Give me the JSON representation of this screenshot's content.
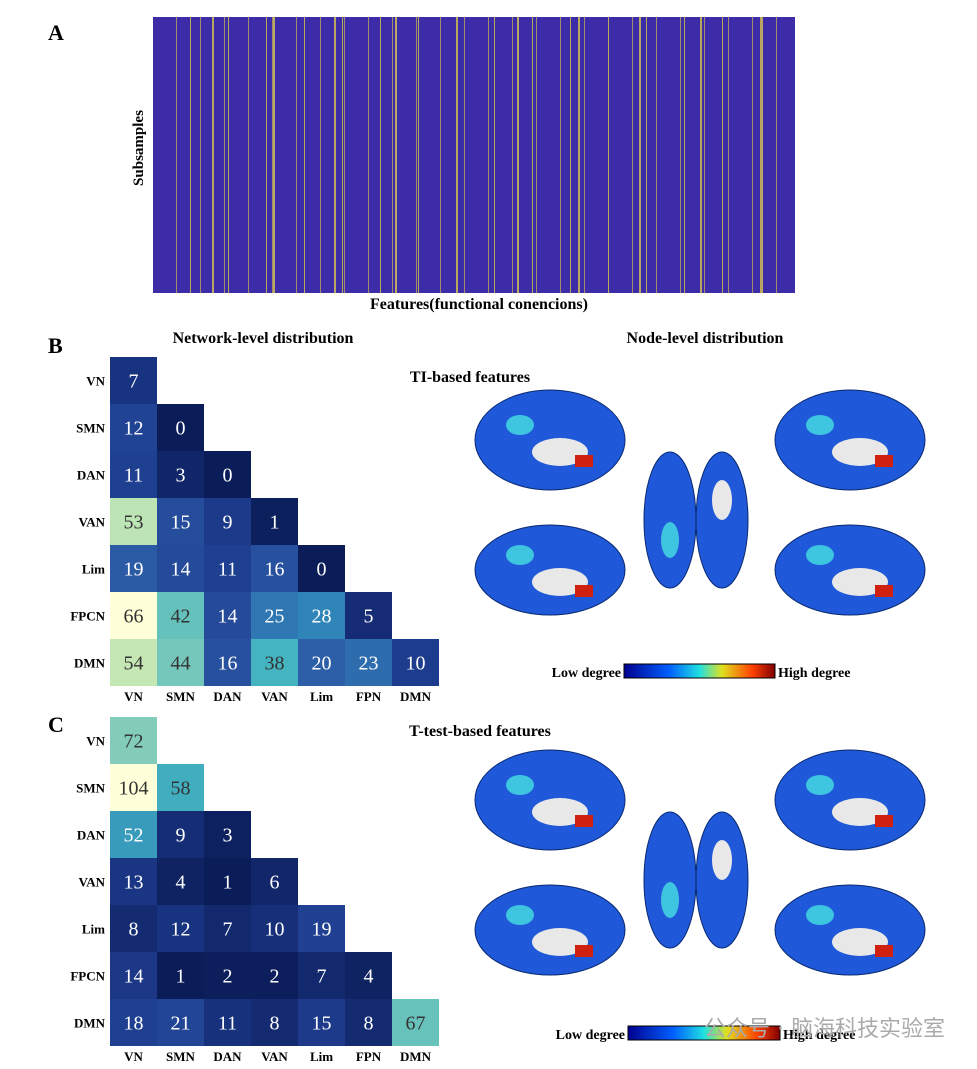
{
  "panel_labels": [
    "A",
    "B",
    "C"
  ],
  "panel_a": {
    "ylabel": "Subsamples",
    "xlabel": "Features(functional conencions)"
  },
  "node_level": {
    "title": "Node-level distribution",
    "ti_title": "TI-based features",
    "ttest_title": "T-test-based features",
    "colorbar": {
      "low": "Low degree",
      "high": "High degree"
    }
  },
  "watermark": "公众号 · 脑海科技实验室",
  "chart_data": [
    {
      "type": "heatmap",
      "title": "Network-level distribution",
      "rows": [
        "VN",
        "SMN",
        "DAN",
        "VAN",
        "Lim",
        "FPCN",
        "DMN"
      ],
      "columns": [
        "VN",
        "SMN",
        "DAN",
        "VAN",
        "Lim",
        "FPN",
        "DMN"
      ],
      "colormap": [
        "#0b1d59",
        "#1d3a8c",
        "#2c5aa6",
        "#2f86b8",
        "#42b4c0",
        "#8fd1b8",
        "#d9efb2",
        "#ffffd9"
      ],
      "values": [
        [
          7
        ],
        [
          12,
          0
        ],
        [
          11,
          3,
          0
        ],
        [
          53,
          15,
          9,
          1
        ],
        [
          19,
          14,
          11,
          16,
          0
        ],
        [
          66,
          42,
          14,
          25,
          28,
          5
        ],
        [
          54,
          44,
          16,
          38,
          20,
          23,
          10
        ]
      ]
    },
    {
      "type": "heatmap",
      "rows": [
        "VN",
        "SMN",
        "DAN",
        "VAN",
        "Lim",
        "FPCN",
        "DMN"
      ],
      "columns": [
        "VN",
        "SMN",
        "DAN",
        "VAN",
        "Lim",
        "FPN",
        "DMN"
      ],
      "colormap": [
        "#0b1d59",
        "#1d3a8c",
        "#2c5aa6",
        "#2f86b8",
        "#42b4c0",
        "#8fd1b8",
        "#d9efb2",
        "#ffffd9"
      ],
      "values": [
        [
          72
        ],
        [
          104,
          58
        ],
        [
          52,
          9,
          3
        ],
        [
          13,
          4,
          1,
          6
        ],
        [
          8,
          12,
          7,
          10,
          19
        ],
        [
          14,
          1,
          2,
          2,
          7,
          4
        ],
        [
          18,
          21,
          11,
          8,
          15,
          8,
          67
        ]
      ]
    }
  ]
}
